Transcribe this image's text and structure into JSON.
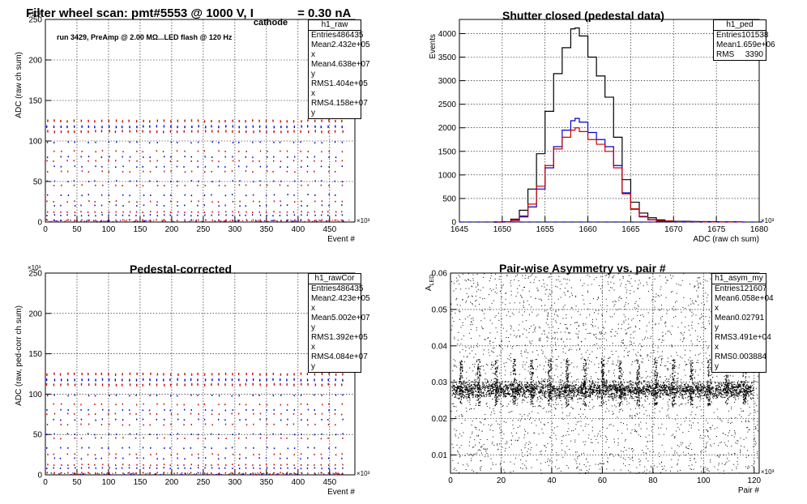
{
  "page_title": {
    "main": "Filter wheel scan: pmt#5553 @  1000 V, I",
    "sub": "cathode",
    "tail": "= 0.30 nA"
  },
  "chart_data": [
    {
      "id": "raw",
      "type": "scatter",
      "title": "",
      "xlabel": "Event #",
      "ylabel": "ADC (raw ch sum)",
      "x_multiplier": "×10³",
      "y_multiplier": "×10³",
      "xlim": [
        0,
        490
      ],
      "ylim": [
        0,
        250
      ],
      "x_ticks": [
        0,
        50,
        100,
        150,
        200,
        250,
        300,
        350,
        400,
        450
      ],
      "y_ticks": [
        0,
        50,
        100,
        150,
        200,
        250
      ],
      "grid": true,
      "annotation": "run 3429, PreAmp @ 2.00 MΩ...LED flash @  120 Hz",
      "levels": [
        2,
        8,
        12,
        20,
        25,
        33,
        45,
        50,
        62,
        68,
        75,
        80,
        87,
        98,
        112,
        118,
        125
      ],
      "stats": {
        "name": "h1_raw",
        "rows": [
          [
            "Entries",
            "486435"
          ],
          [
            "Mean x",
            "2.432e+05"
          ],
          [
            "Mean y",
            "4.638e+07"
          ],
          [
            "RMS x",
            "1.404e+05"
          ],
          [
            "RMS y",
            "4.158e+07"
          ]
        ]
      }
    },
    {
      "id": "ped",
      "type": "line",
      "title": "Shutter closed (pedestal data)",
      "xlabel": "ADC (raw ch sum)",
      "ylabel": "Events",
      "x_multiplier": "×10³",
      "xlim": [
        1645,
        1680
      ],
      "ylim": [
        0,
        4300
      ],
      "x_ticks": [
        1645,
        1650,
        1655,
        1660,
        1665,
        1670,
        1675,
        1680
      ],
      "y_ticks": [
        0,
        500,
        1000,
        1500,
        2000,
        2500,
        3000,
        3500,
        4000
      ],
      "grid": true,
      "series": [
        {
          "color": "#000000",
          "points": [
            [
              1649,
              0
            ],
            [
              1650,
              5
            ],
            [
              1651,
              60
            ],
            [
              1652,
              250
            ],
            [
              1653,
              700
            ],
            [
              1654,
              1450
            ],
            [
              1655,
              2350
            ],
            [
              1656,
              3150
            ],
            [
              1657,
              3700
            ],
            [
              1658,
              4100
            ],
            [
              1658.5,
              4120
            ],
            [
              1659,
              3950
            ],
            [
              1660,
              3500
            ],
            [
              1661,
              3100
            ],
            [
              1662,
              2650
            ],
            [
              1663,
              1800
            ],
            [
              1664,
              900
            ],
            [
              1665,
              420
            ],
            [
              1666,
              190
            ],
            [
              1667,
              90
            ],
            [
              1668,
              45
            ],
            [
              1669,
              25
            ],
            [
              1670,
              15
            ],
            [
              1672,
              8
            ],
            [
              1675,
              3
            ],
            [
              1678,
              0
            ]
          ]
        },
        {
          "color": "#0000cc",
          "points": [
            [
              1649,
              0
            ],
            [
              1650,
              3
            ],
            [
              1651,
              30
            ],
            [
              1652,
              110
            ],
            [
              1653,
              320
            ],
            [
              1654,
              700
            ],
            [
              1655,
              1150
            ],
            [
              1656,
              1600
            ],
            [
              1657,
              1950
            ],
            [
              1658,
              2150
            ],
            [
              1658.5,
              2200
            ],
            [
              1659,
              2120
            ],
            [
              1660,
              1900
            ],
            [
              1661,
              1750
            ],
            [
              1662,
              1600
            ],
            [
              1663,
              1200
            ],
            [
              1664,
              620
            ],
            [
              1665,
              270
            ],
            [
              1666,
              110
            ],
            [
              1667,
              45
            ],
            [
              1668,
              20
            ],
            [
              1670,
              8
            ],
            [
              1673,
              2
            ],
            [
              1678,
              0
            ]
          ]
        },
        {
          "color": "#cc0000",
          "points": [
            [
              1649,
              0
            ],
            [
              1650,
              3
            ],
            [
              1651,
              35
            ],
            [
              1652,
              130
            ],
            [
              1653,
              380
            ],
            [
              1654,
              760
            ],
            [
              1655,
              1200
            ],
            [
              1656,
              1550
            ],
            [
              1657,
              1800
            ],
            [
              1658,
              1950
            ],
            [
              1658.5,
              2000
            ],
            [
              1659,
              1920
            ],
            [
              1660,
              1750
            ],
            [
              1661,
              1650
            ],
            [
              1662,
              1500
            ],
            [
              1663,
              1150
            ],
            [
              1664,
              600
            ],
            [
              1665,
              280
            ],
            [
              1666,
              120
            ],
            [
              1667,
              50
            ],
            [
              1668,
              22
            ],
            [
              1670,
              8
            ],
            [
              1673,
              2
            ],
            [
              1678,
              0
            ]
          ]
        }
      ],
      "stats": {
        "name": "h1_ped",
        "rows": [
          [
            "Entries",
            "101538"
          ],
          [
            "Mean",
            "1.659e+06"
          ],
          [
            "RMS",
            "3390"
          ]
        ]
      }
    },
    {
      "id": "rawcor",
      "type": "scatter",
      "title": "Pedestal-corrected",
      "xlabel": "Event #",
      "ylabel": "ADC (raw, ped-corr ch sum)",
      "x_multiplier": "×10³",
      "y_multiplier": "×10³",
      "xlim": [
        0,
        490
      ],
      "ylim": [
        0,
        250
      ],
      "x_ticks": [
        0,
        50,
        100,
        150,
        200,
        250,
        300,
        350,
        400,
        450
      ],
      "y_ticks": [
        0,
        50,
        100,
        150,
        200,
        250
      ],
      "grid": true,
      "levels": [
        2,
        8,
        12,
        20,
        25,
        33,
        45,
        50,
        62,
        68,
        75,
        80,
        87,
        98,
        112,
        118,
        125
      ],
      "stats": {
        "name": "h1_rawCor",
        "rows": [
          [
            "Entries",
            "486435"
          ],
          [
            "Mean x",
            "2.423e+05"
          ],
          [
            "Mean y",
            "5.002e+07"
          ],
          [
            "RMS x",
            "1.392e+05"
          ],
          [
            "RMS y",
            "4.084e+07"
          ]
        ]
      }
    },
    {
      "id": "asym",
      "type": "scatter",
      "title": "Pair-wise Asymmetry vs. pair #",
      "xlabel": "Pair #",
      "ylabel": "A",
      "ylabel_sub": "LED",
      "x_multiplier": "×10³",
      "xlim": [
        0,
        122
      ],
      "ylim": [
        0.005,
        0.06
      ],
      "x_ticks": [
        0,
        20,
        40,
        60,
        80,
        100,
        120
      ],
      "y_ticks": [
        0.01,
        0.02,
        0.03,
        0.04,
        0.05,
        0.06
      ],
      "grid": true,
      "band_center": 0.028,
      "spikes_x": [
        4,
        11,
        18,
        25,
        32,
        39,
        46,
        53,
        60,
        67,
        74,
        81,
        88,
        95,
        102,
        109,
        116
      ],
      "stats": {
        "name": "h1_asym_my",
        "rows": [
          [
            "Entries",
            "121607"
          ],
          [
            "Mean x",
            "6.058e+04"
          ],
          [
            "Mean y",
            "0.02791"
          ],
          [
            "RMS x",
            "3.491e+04"
          ],
          [
            "RMS y",
            "0.003884"
          ]
        ]
      }
    }
  ]
}
